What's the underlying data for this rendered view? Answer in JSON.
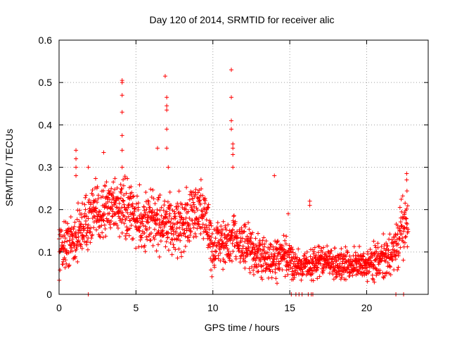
{
  "chart_data": {
    "type": "scatter",
    "title": "Day 120 of 2014, SRMTID for receiver alic",
    "xlabel": "GPS time / hours",
    "ylabel": "SRMTID / TECUs",
    "xlim": [
      0,
      24
    ],
    "ylim": [
      0,
      0.6
    ],
    "xticks": [
      0,
      5,
      10,
      15,
      20
    ],
    "yticks": [
      0,
      0.1,
      0.2,
      0.3,
      0.4,
      0.5,
      0.6
    ],
    "xtick_labels": [
      "0",
      "5",
      "10",
      "15",
      "20"
    ],
    "ytick_labels": [
      "0",
      "0.1",
      "0.2",
      "0.3",
      "0.4",
      "0.5",
      "0.6"
    ],
    "grid": true,
    "marker": "+",
    "color": "#ff0000",
    "envelope": [
      [
        0.0,
        0.11,
        0.05
      ],
      [
        0.5,
        0.12,
        0.05
      ],
      [
        1.0,
        0.13,
        0.05
      ],
      [
        1.5,
        0.16,
        0.06
      ],
      [
        2.0,
        0.18,
        0.06
      ],
      [
        2.5,
        0.19,
        0.06
      ],
      [
        3.0,
        0.2,
        0.06
      ],
      [
        3.5,
        0.22,
        0.06
      ],
      [
        4.0,
        0.2,
        0.06
      ],
      [
        4.5,
        0.19,
        0.06
      ],
      [
        5.0,
        0.18,
        0.06
      ],
      [
        5.5,
        0.17,
        0.06
      ],
      [
        6.0,
        0.18,
        0.06
      ],
      [
        6.5,
        0.17,
        0.06
      ],
      [
        7.0,
        0.16,
        0.06
      ],
      [
        7.5,
        0.16,
        0.06
      ],
      [
        8.0,
        0.17,
        0.06
      ],
      [
        8.5,
        0.18,
        0.06
      ],
      [
        9.0,
        0.2,
        0.06
      ],
      [
        9.5,
        0.19,
        0.06
      ],
      [
        10.0,
        0.1,
        0.06
      ],
      [
        10.5,
        0.13,
        0.05
      ],
      [
        11.0,
        0.11,
        0.05
      ],
      [
        11.5,
        0.14,
        0.05
      ],
      [
        12.0,
        0.11,
        0.05
      ],
      [
        12.5,
        0.1,
        0.05
      ],
      [
        13.0,
        0.09,
        0.04
      ],
      [
        13.5,
        0.08,
        0.04
      ],
      [
        14.0,
        0.08,
        0.04
      ],
      [
        14.5,
        0.09,
        0.04
      ],
      [
        15.0,
        0.08,
        0.04
      ],
      [
        15.5,
        0.07,
        0.03
      ],
      [
        16.0,
        0.07,
        0.03
      ],
      [
        16.5,
        0.07,
        0.03
      ],
      [
        17.0,
        0.08,
        0.03
      ],
      [
        17.5,
        0.08,
        0.03
      ],
      [
        18.0,
        0.07,
        0.03
      ],
      [
        18.5,
        0.07,
        0.03
      ],
      [
        19.0,
        0.07,
        0.03
      ],
      [
        19.5,
        0.07,
        0.03
      ],
      [
        20.0,
        0.07,
        0.03
      ],
      [
        20.5,
        0.08,
        0.04
      ],
      [
        21.0,
        0.08,
        0.04
      ],
      [
        21.5,
        0.09,
        0.04
      ],
      [
        22.0,
        0.12,
        0.05
      ],
      [
        22.5,
        0.17,
        0.06
      ]
    ],
    "outliers": [
      [
        1.1,
        0.34
      ],
      [
        1.1,
        0.32
      ],
      [
        1.1,
        0.3
      ],
      [
        1.1,
        0.28
      ],
      [
        1.9,
        0.3
      ],
      [
        2.9,
        0.335
      ],
      [
        4.1,
        0.505
      ],
      [
        4.1,
        0.5
      ],
      [
        4.1,
        0.47
      ],
      [
        4.1,
        0.43
      ],
      [
        4.1,
        0.375
      ],
      [
        4.1,
        0.34
      ],
      [
        4.1,
        0.3
      ],
      [
        6.4,
        0.345
      ],
      [
        6.9,
        0.515
      ],
      [
        7.0,
        0.465
      ],
      [
        7.0,
        0.445
      ],
      [
        7.0,
        0.435
      ],
      [
        7.0,
        0.39
      ],
      [
        7.0,
        0.345
      ],
      [
        7.1,
        0.3
      ],
      [
        11.2,
        0.53
      ],
      [
        11.2,
        0.465
      ],
      [
        11.2,
        0.41
      ],
      [
        11.2,
        0.39
      ],
      [
        11.3,
        0.355
      ],
      [
        11.3,
        0.345
      ],
      [
        11.3,
        0.33
      ],
      [
        11.3,
        0.3
      ],
      [
        14.0,
        0.28
      ],
      [
        14.9,
        0.19
      ],
      [
        16.3,
        0.22
      ],
      [
        16.3,
        0.21
      ],
      [
        22.6,
        0.285
      ],
      [
        22.6,
        0.27
      ]
    ],
    "zeros": [
      1.9,
      15.1,
      15.4,
      15.6,
      15.8,
      16.2,
      16.4,
      16.5,
      21.9,
      22.4
    ]
  }
}
